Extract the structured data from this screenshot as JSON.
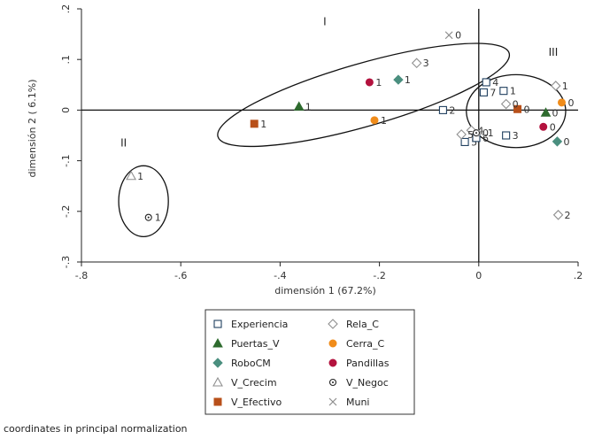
{
  "chart_data": {
    "type": "scatter",
    "xlabel": "dimensión 1 (67.2%)",
    "ylabel": "dimensión 2 ( 6.1%)",
    "xlim": [
      -0.8,
      0.2
    ],
    "ylim": [
      -0.3,
      0.2
    ],
    "xticks": [
      "-.8",
      "-.6",
      "-.4",
      "-.2",
      "0",
      ".2"
    ],
    "yticks": [
      ".2",
      ".1",
      "0",
      "-.1",
      "-.2",
      "-.3"
    ],
    "grid": false,
    "legend_placement": "bottom",
    "group_labels": [
      {
        "text": "I",
        "x": -0.31,
        "y": 0.168
      },
      {
        "text": "II",
        "x": -0.715,
        "y": -0.072
      },
      {
        "text": "III",
        "x": 0.15,
        "y": 0.107
      }
    ],
    "ellipses": [
      {
        "cx": -0.232,
        "cy": 0.03,
        "rx": 0.305,
        "ry": 0.062,
        "angle_deg": 16
      },
      {
        "cx": -0.675,
        "cy": -0.18,
        "rx": 0.05,
        "ry": 0.07,
        "angle_deg": 0
      },
      {
        "cx": 0.075,
        "cy": -0.002,
        "rx": 0.1,
        "ry": 0.072,
        "angle_deg": 0
      }
    ],
    "series": [
      {
        "name": "Experiencia",
        "marker": "open-square",
        "color": "#1f3f5f",
        "points": [
          {
            "x": -0.072,
            "y": 0.0,
            "label": "2"
          },
          {
            "x": 0.015,
            "y": 0.055,
            "label": "4"
          },
          {
            "x": 0.01,
            "y": 0.035,
            "label": "7"
          },
          {
            "x": 0.05,
            "y": 0.038,
            "label": "1"
          },
          {
            "x": 0.055,
            "y": -0.05,
            "label": "3"
          },
          {
            "x": -0.028,
            "y": -0.063,
            "label": "5"
          },
          {
            "x": -0.005,
            "y": -0.055,
            "label": "6"
          }
        ]
      },
      {
        "name": "Puertas_V",
        "marker": "filled-triangle",
        "color": "#2e6b2e",
        "points": [
          {
            "x": -0.362,
            "y": 0.007,
            "label": "1"
          },
          {
            "x": 0.135,
            "y": -0.005,
            "label": "0"
          }
        ]
      },
      {
        "name": "RoboCM",
        "marker": "filled-diamond",
        "color": "#4a8f7f",
        "points": [
          {
            "x": -0.162,
            "y": 0.06,
            "label": "1"
          },
          {
            "x": 0.158,
            "y": -0.062,
            "label": "0"
          }
        ]
      },
      {
        "name": "V_Crecim",
        "marker": "open-triangle",
        "color": "#8f8f8f",
        "points": [
          {
            "x": -0.7,
            "y": -0.13,
            "label": "1"
          }
        ]
      },
      {
        "name": "V_Efectivo",
        "marker": "filled-square",
        "color": "#b8501a",
        "points": [
          {
            "x": -0.452,
            "y": -0.027,
            "label": "1"
          },
          {
            "x": 0.078,
            "y": 0.002,
            "label": "0"
          }
        ]
      },
      {
        "name": "Rela_C",
        "marker": "open-diamond",
        "color": "#8f8f8f",
        "points": [
          {
            "x": -0.125,
            "y": 0.093,
            "label": "3"
          },
          {
            "x": 0.155,
            "y": 0.048,
            "label": "1"
          },
          {
            "x": 0.055,
            "y": 0.012,
            "label": "0"
          },
          {
            "x": -0.015,
            "y": -0.04,
            "label": "4"
          },
          {
            "x": -0.035,
            "y": -0.048,
            "label": "5"
          },
          {
            "x": 0.16,
            "y": -0.207,
            "label": "2"
          }
        ]
      },
      {
        "name": "Cerra_C",
        "marker": "filled-circle",
        "color": "#f08c1a",
        "points": [
          {
            "x": -0.21,
            "y": -0.02,
            "label": "1"
          },
          {
            "x": 0.167,
            "y": 0.015,
            "label": "0"
          }
        ]
      },
      {
        "name": "Pandillas",
        "marker": "filled-circle",
        "color": "#b3123e",
        "points": [
          {
            "x": -0.22,
            "y": 0.055,
            "label": "1"
          },
          {
            "x": 0.13,
            "y": -0.033,
            "label": "0"
          }
        ]
      },
      {
        "name": "V_Negoc",
        "marker": "open-circle-dot",
        "color": "#222222",
        "points": [
          {
            "x": -0.665,
            "y": -0.212,
            "label": "1"
          },
          {
            "x": -0.005,
            "y": -0.045,
            "label": "0"
          }
        ]
      },
      {
        "name": "Muni",
        "marker": "x",
        "color": "#8f8f8f",
        "points": [
          {
            "x": -0.06,
            "y": 0.148,
            "label": "0"
          },
          {
            "x": 0.005,
            "y": -0.045,
            "label": "1"
          }
        ]
      }
    ]
  },
  "footer": {
    "note": "coordinates in principal normalization"
  }
}
